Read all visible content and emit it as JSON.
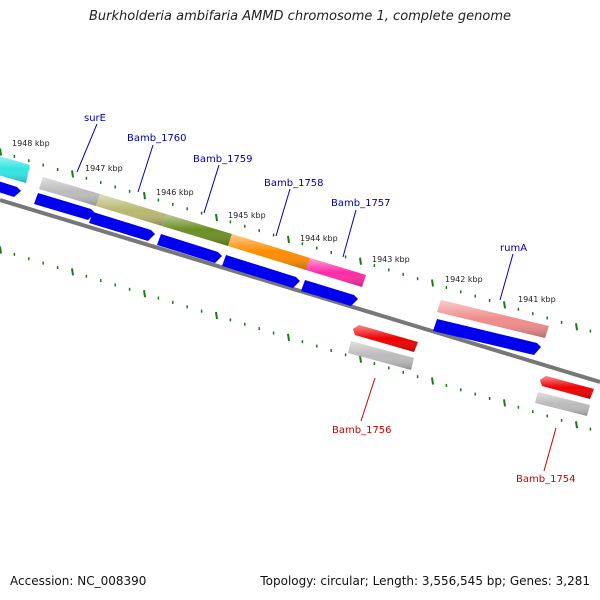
{
  "title": "Burkholderia ambifaria AMMD chromosome 1, complete genome",
  "footer": {
    "accession": "Accession: NC_008390",
    "stats": "Topology: circular; Length: 3,556,545 bp; Genes: 3,281"
  },
  "kbp_ticks": [
    "1948 kbp",
    "1947 kbp",
    "1946 kbp",
    "1945 kbp",
    "1944 kbp",
    "1943 kbp",
    "1942 kbp",
    "1941 kbp"
  ],
  "gene_labels": {
    "surE": "surE",
    "Bamb_1760": "Bamb_1760",
    "Bamb_1759": "Bamb_1759",
    "Bamb_1758": "Bamb_1758",
    "Bamb_1757": "Bamb_1757",
    "rumA": "rumA",
    "Bamb_1756": "Bamb_1756",
    "Bamb_1754": "Bamb_1754"
  },
  "colors": {
    "backbone": "#777777",
    "tick": "#1a7a1a",
    "forward_label": "#0000aa",
    "reverse_label": "#cc0000",
    "cds": "#0000ee",
    "cds_reverse": "#ee0000",
    "gene_gray": "#bbbbbb",
    "cyan": "#33e5e5",
    "olive": "#b8b870",
    "dark_olive": "#6b8e23",
    "orange": "#ff8c00",
    "magenta": "#ff2aa5",
    "salmon": "#f08c8c"
  }
}
